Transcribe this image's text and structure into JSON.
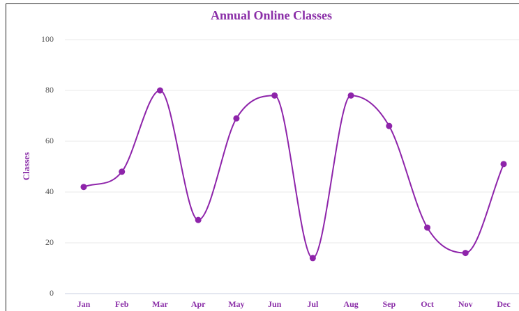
{
  "chart_data": {
    "type": "line",
    "title": "Annual Online Classes",
    "y_label": "Classes",
    "categories": [
      "Jan",
      "Feb",
      "Mar",
      "Apr",
      "May",
      "Jun",
      "Jul",
      "Aug",
      "Sep",
      "Oct",
      "Nov",
      "Dec"
    ],
    "values": [
      42,
      48,
      80,
      29,
      69,
      78,
      14,
      78,
      66,
      26,
      16,
      51
    ],
    "color": "#8e24aa",
    "ylim": [
      0,
      100
    ],
    "yticks": [
      0,
      20,
      40,
      60,
      80,
      100
    ],
    "grid": true,
    "smooth": true
  }
}
